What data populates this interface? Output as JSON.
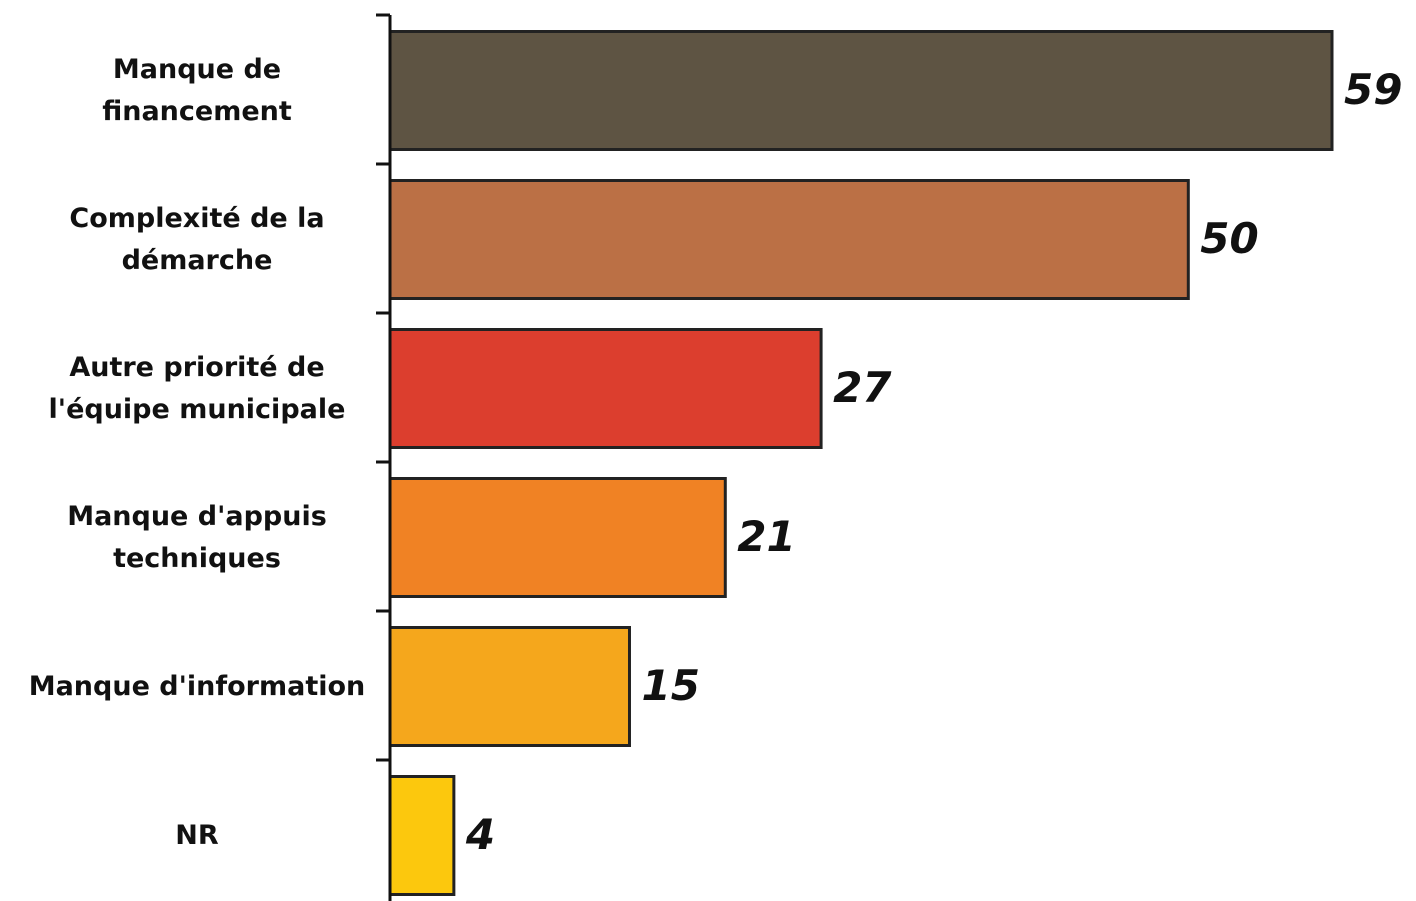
{
  "chart_data": {
    "type": "bar",
    "orientation": "horizontal",
    "categories": [
      "Manque de financement",
      "Complexité de la démarche",
      "Autre priorité de l'équipe municipale",
      "Manque d'appuis techniques",
      "Manque d'information",
      "NR"
    ],
    "values": [
      59,
      50,
      27,
      21,
      15,
      4
    ],
    "colors": [
      "#5e5443",
      "#bb7045",
      "#dc3e2e",
      "#f08224",
      "#f5a71c",
      "#fcc80d"
    ],
    "xlim": [
      0,
      59
    ]
  }
}
